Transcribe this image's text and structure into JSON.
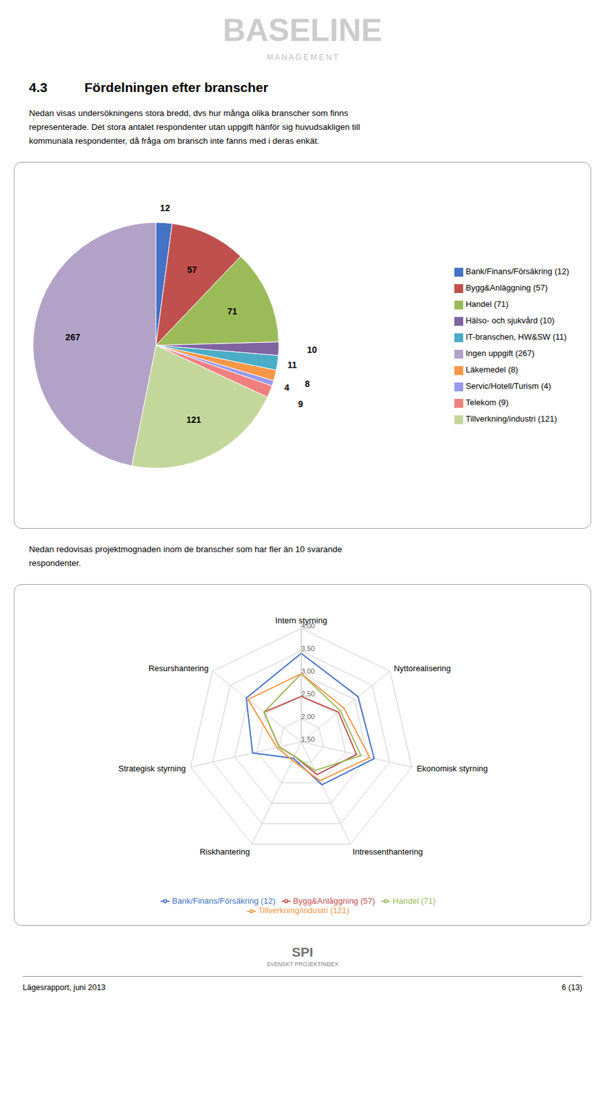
{
  "chart_data": [
    {
      "type": "pie",
      "annotations": [
        "BASELINE",
        "M A N A G E M E N T",
        "4.3",
        "Fördelningen efter branscher",
        "Nedan visas undersökningens stora bredd, dvs hur många olika branscher som finns",
        "representerade. Det stora antalet respondenter utan uppgift hänför sig huvudsakligen till",
        "kommunala respondenter, då fråga om bransch inte fanns med i deras enkät."
      ],
      "categories": [
        "Bank/Finans/Försäkring (12)",
        "Bygg&Anläggning (57)",
        "Handel (71)",
        "Hälso- och sjukvård (10)",
        "IT-branschen, HW&SW (11)",
        "Läkemedel (8)",
        "Servic/Hotell/Turism (4)",
        "Telekom (9)",
        "Tillverkning/industri (121)",
        "Ingen uppgift (267)"
      ],
      "values": [
        12,
        57,
        71,
        10,
        11,
        8,
        4,
        9,
        121,
        267
      ],
      "colors": [
        "#4472C4",
        "#C0504D",
        "#9BBB59",
        "#8064A2",
        "#4BACC6",
        "#F79646",
        "#9999EE",
        "#F08080",
        "#C4D79B",
        "#B3A2C7"
      ],
      "data_labels": true,
      "legend": "right"
    },
    {
      "type": "radar",
      "annotations": [
        "Nedan redovisas projektmognaden inom de branscher som har fler än 10 svarande",
        "respondenter.",
        "SPI",
        "SVENSKT PROJEKTINDEX",
        "Lägesrapport, juni 2013",
        "6 (13)"
      ],
      "categories": [
        "Intern styrning",
        "Nyttorealisering",
        "Ekonomisk styrning",
        "Intressenthantering",
        "Riskhantering",
        "Strategisk styrning",
        "Resurshantering"
      ],
      "series": [
        {
          "name": "Bank/Finans/Försäkring (12)",
          "color": "#4472C4",
          "values": [
            3.45,
            3.1,
            3.15,
            2.55,
            1.9,
            2.6,
            3.05
          ]
        },
        {
          "name": "Bygg&Anläggning (57)",
          "color": "#C0504D",
          "values": [
            2.5,
            2.55,
            2.75,
            2.3,
            1.85,
            2.0,
            2.55
          ]
        },
        {
          "name": "Handel (71)",
          "color": "#9BBB59",
          "values": [
            3.0,
            2.6,
            2.85,
            2.2,
            1.85,
            2.0,
            2.55
          ]
        },
        {
          "name": "Tillverkning/industri (121)",
          "color": "#F79646",
          "values": [
            3.0,
            2.7,
            3.05,
            2.45,
            1.95,
            2.05,
            3.0
          ]
        }
      ],
      "ylim": [
        1.5,
        4.0
      ],
      "yticks": [
        {
          "value": 1.5,
          "label": "1,50"
        },
        {
          "value": 2.0,
          "label": "2,00"
        },
        {
          "value": 2.5,
          "label": "2,50"
        },
        {
          "value": 3.0,
          "label": "3,00"
        },
        {
          "value": 3.5,
          "label": "3,50"
        },
        {
          "value": 4.0,
          "label": "4,00"
        }
      ],
      "grid": true,
      "legend": "bottom"
    }
  ]
}
